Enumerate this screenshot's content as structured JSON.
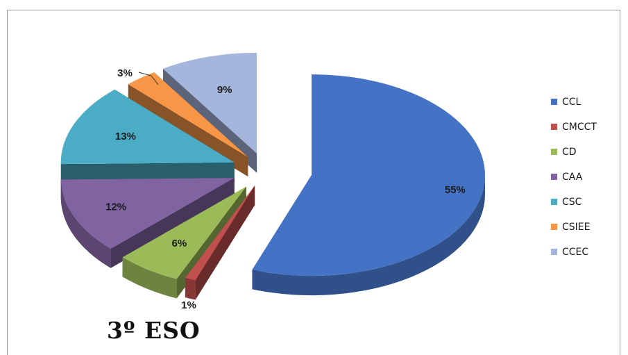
{
  "chart_data": {
    "type": "pie",
    "title": "3º ESO",
    "labels": [
      "CCL",
      "CMCCT",
      "CD",
      "CAA",
      "CSC",
      "CSIEE",
      "CCEC"
    ],
    "values": [
      55,
      1,
      6,
      12,
      13,
      3,
      9
    ],
    "value_labels": [
      "55%",
      "1%",
      "6%",
      "12%",
      "13%",
      "3%",
      "9%"
    ],
    "colors": [
      "#4472C4",
      "#C0504D",
      "#9BBB59",
      "#8064A2",
      "#4BACC6",
      "#F79646",
      "#A5B6DC"
    ],
    "legend_position": "right",
    "exploded": true,
    "three_d": true
  }
}
